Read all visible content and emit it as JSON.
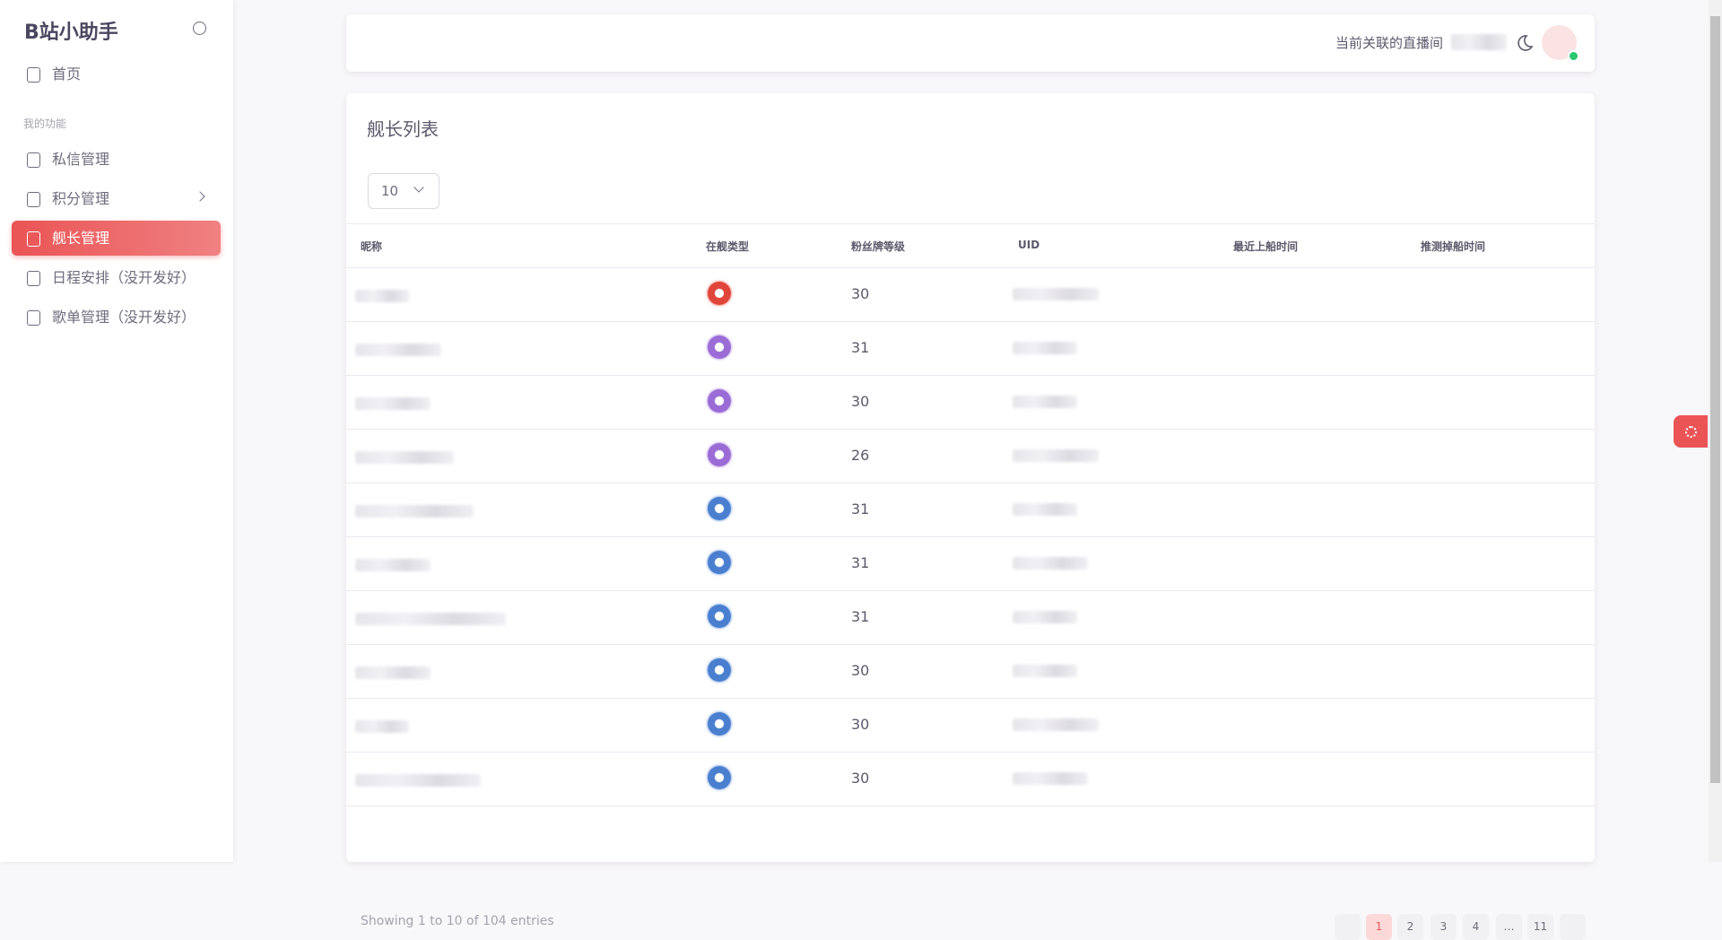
{
  "sidebar": {
    "brand": "B站小助手",
    "home": "首页",
    "section_label": "我的功能",
    "menu": [
      "私信管理",
      "积分管理",
      "舰长管理",
      "日程安排（没开发好）",
      "歌单管理（没开发好）"
    ]
  },
  "header": {
    "live_room_label": "当前关联的直播间"
  },
  "card": {
    "title": "舰长列表",
    "page_size": "10",
    "columns": [
      "昵称",
      "在舰类型",
      "粉丝牌等级",
      "UID",
      "最近上船时间",
      "推测掉船时间"
    ],
    "rows": [
      {
        "level": 30
      },
      {
        "level": 31
      },
      {
        "level": 30
      },
      {
        "level": 26
      },
      {
        "level": 31
      },
      {
        "level": 31
      },
      {
        "level": 31
      },
      {
        "level": 30
      },
      {
        "level": 30
      },
      {
        "level": 30
      }
    ],
    "footer": "Showing 1 to 10 of 104 entries",
    "pages": [
      "1",
      "2",
      "3",
      "4",
      "…",
      "11"
    ]
  }
}
